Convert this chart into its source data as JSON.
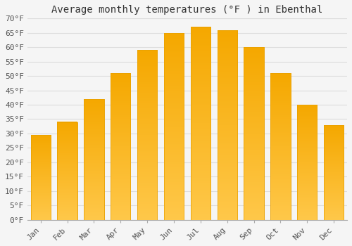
{
  "title": "Average monthly temperatures (°F ) in Ebenthal",
  "months": [
    "Jan",
    "Feb",
    "Mar",
    "Apr",
    "May",
    "Jun",
    "Jul",
    "Aug",
    "Sep",
    "Oct",
    "Nov",
    "Dec"
  ],
  "values": [
    29.5,
    34.0,
    42.0,
    51.0,
    59.0,
    65.0,
    67.0,
    66.0,
    60.0,
    51.0,
    40.0,
    33.0
  ],
  "bar_color_top": "#FFC84A",
  "bar_color_bottom": "#F5A800",
  "bar_edge_color": "#E8A000",
  "background_color": "#f5f5f5",
  "plot_bg_color": "#f5f5f5",
  "grid_color": "#dddddd",
  "ylim": [
    0,
    70
  ],
  "ytick_step": 5,
  "title_fontsize": 10,
  "tick_fontsize": 8,
  "font_family": "monospace"
}
